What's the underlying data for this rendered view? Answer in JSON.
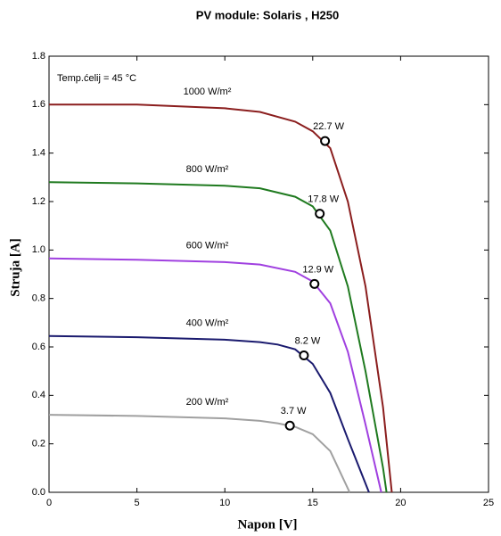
{
  "chart_data": {
    "type": "line",
    "title": "PV module:  Solaris ,  H250",
    "xlabel": "Napon [V]",
    "ylabel": "Struja [A]",
    "annotation": "Temp.ćelij  = 45 °C",
    "xlim": [
      0,
      25
    ],
    "xticks": [
      0,
      5,
      10,
      15,
      20,
      25
    ],
    "ylim": [
      0,
      1.8
    ],
    "yticks": [
      {
        "value": 0,
        "label": "0.0"
      },
      0.2,
      0.4,
      0.6,
      0.8,
      {
        "value": 1,
        "label": "1.0"
      },
      1.2,
      1.4,
      1.6,
      1.8
    ],
    "series": [
      {
        "name": "1000 W/m²",
        "color": "#8b1e1e",
        "x": [
          0,
          5,
          10,
          12,
          14,
          15,
          16,
          17,
          18,
          19,
          19.5
        ],
        "values": [
          1.6,
          1.6,
          1.585,
          1.57,
          1.53,
          1.49,
          1.42,
          1.2,
          0.85,
          0.35,
          0
        ],
        "mpp": {
          "x": 15.7,
          "y": 1.45,
          "label": "22.7 W"
        }
      },
      {
        "name": "800 W/m²",
        "color": "#1f7a1f",
        "x": [
          0,
          5,
          10,
          12,
          14,
          15,
          16,
          17,
          18,
          19,
          19.2
        ],
        "values": [
          1.28,
          1.275,
          1.265,
          1.255,
          1.22,
          1.18,
          1.08,
          0.85,
          0.5,
          0.1,
          0
        ],
        "mpp": {
          "x": 15.4,
          "y": 1.15,
          "label": "17.8 W"
        }
      },
      {
        "name": "600 W/m²",
        "color": "#a040e0",
        "x": [
          0,
          5,
          10,
          12,
          14,
          15,
          16,
          17,
          18,
          18.9
        ],
        "values": [
          0.965,
          0.96,
          0.95,
          0.94,
          0.91,
          0.87,
          0.78,
          0.58,
          0.28,
          0
        ],
        "mpp": {
          "x": 15.1,
          "y": 0.86,
          "label": "12.9 W"
        }
      },
      {
        "name": "400 W/m²",
        "color": "#1a1a6e",
        "x": [
          0,
          5,
          10,
          12,
          13,
          14,
          15,
          16,
          17,
          18.2
        ],
        "values": [
          0.645,
          0.64,
          0.63,
          0.62,
          0.61,
          0.59,
          0.53,
          0.41,
          0.22,
          0
        ],
        "mpp": {
          "x": 14.5,
          "y": 0.565,
          "label": "8.2 W"
        }
      },
      {
        "name": "200 W/m²",
        "color": "#a0a0a0",
        "x": [
          0,
          5,
          10,
          12,
          13,
          14,
          15,
          16,
          17.1
        ],
        "values": [
          0.32,
          0.315,
          0.305,
          0.295,
          0.285,
          0.27,
          0.24,
          0.17,
          0
        ],
        "mpp": {
          "x": 13.7,
          "y": 0.275,
          "label": "3.7 W"
        }
      }
    ]
  }
}
